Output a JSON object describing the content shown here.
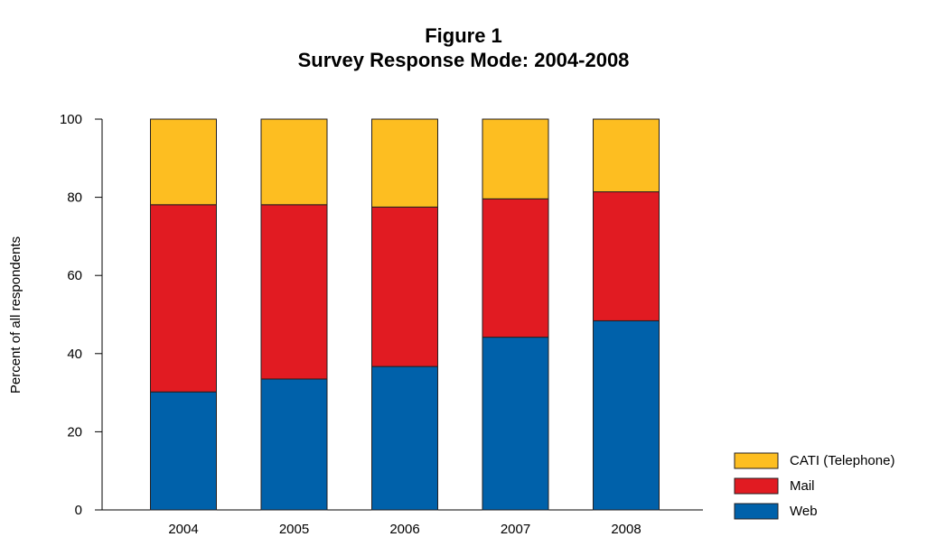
{
  "figure_label": "Figure 1",
  "chart_data": {
    "type": "bar",
    "stacked": true,
    "title": "Survey Response Mode: 2004-2008",
    "xlabel": "",
    "ylabel": "Percent of all respondents",
    "ylim": [
      0,
      100
    ],
    "yticks": [
      0,
      20,
      40,
      60,
      80,
      100
    ],
    "categories": [
      "2004",
      "2005",
      "2006",
      "2007",
      "2008"
    ],
    "series": [
      {
        "name": "Web",
        "color": "#0061aa",
        "values": [
          30.2,
          33.5,
          36.7,
          44.2,
          48.4
        ]
      },
      {
        "name": "Mail",
        "color": "#e11b22",
        "values": [
          47.9,
          44.6,
          40.8,
          35.4,
          33.0
        ]
      },
      {
        "name": "CATI (Telephone)",
        "color": "#fdbe21",
        "values": [
          21.9,
          21.9,
          22.5,
          20.4,
          18.6
        ]
      }
    ],
    "grid": false,
    "legend_position": "bottom-right",
    "legend_order": [
      "CATI (Telephone)",
      "Mail",
      "Web"
    ]
  }
}
